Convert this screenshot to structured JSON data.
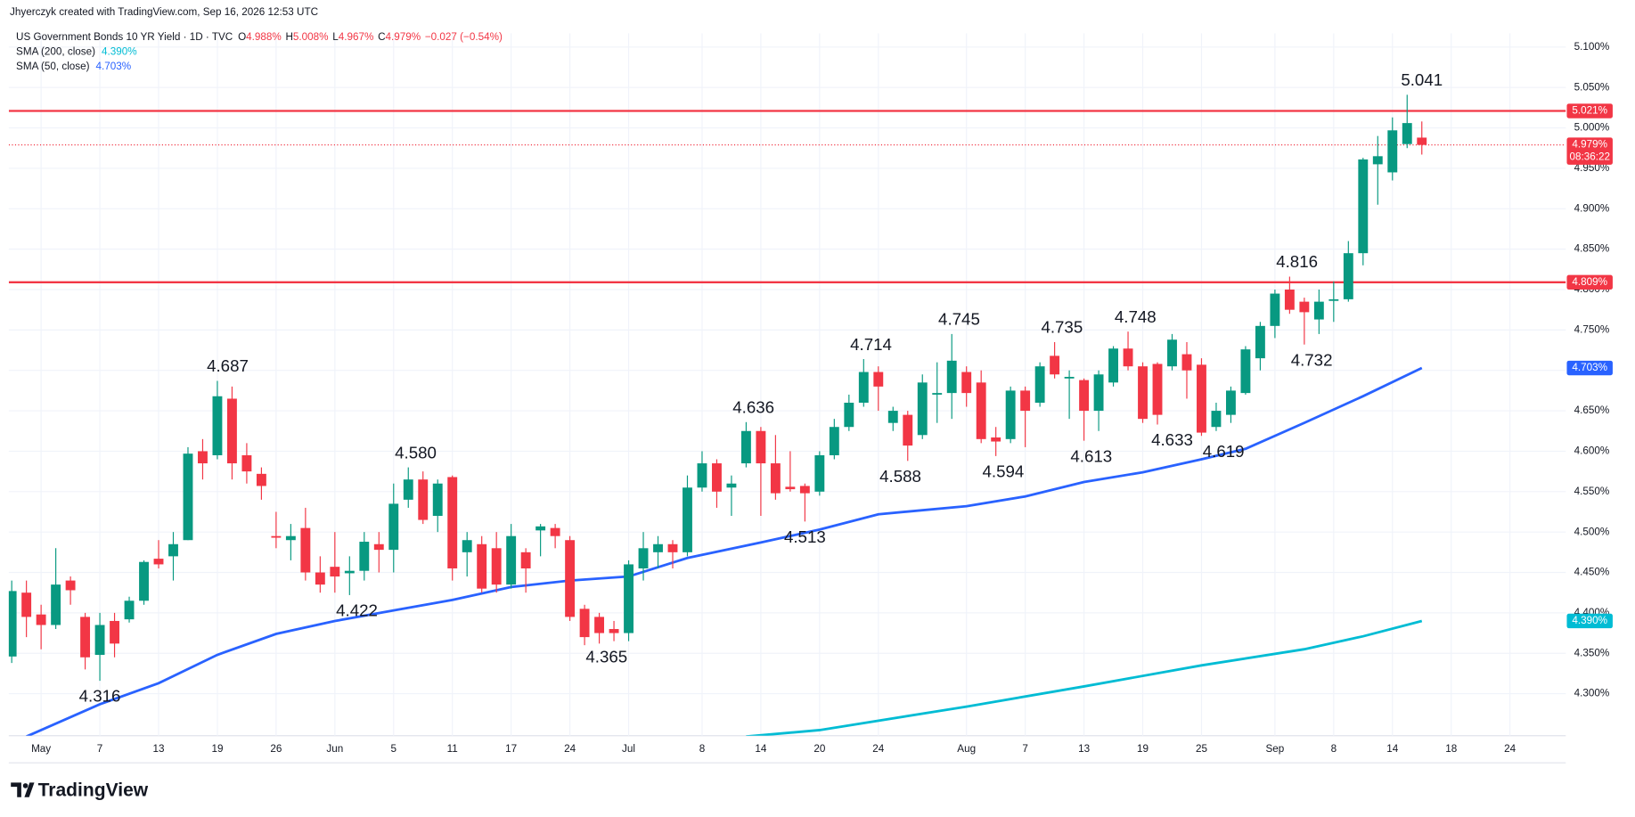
{
  "chart_data": {
    "type": "candlestick",
    "credit": "Jhyerczyk created with TradingView.com, Sep 16, 2026 12:53 UTC",
    "title": "US Government Bonds 10 YR Yield · 1D · TVC",
    "ohlc": [
      {
        "label": "O",
        "text": "4.988%"
      },
      {
        "label": "H",
        "text": "5.008%"
      },
      {
        "label": "L",
        "text": "4.967%"
      },
      {
        "label": "C",
        "text": "4.979%"
      }
    ],
    "change": "−0.027 (−0.54%)",
    "footer": "TradingView",
    "up_color": "#089981",
    "down_color": "#f23645",
    "open": [
      4.346,
      4.425,
      4.398,
      4.385,
      4.44,
      4.395,
      4.348,
      4.39,
      4.392,
      4.415,
      4.467,
      4.47,
      4.49,
      4.6,
      4.595,
      4.665,
      4.595,
      4.572,
      4.495,
      4.49,
      4.505,
      4.45,
      4.457,
      4.449,
      4.452,
      4.485,
      4.478,
      4.54,
      4.565,
      4.52,
      4.568,
      4.475,
      4.485,
      4.48,
      4.435,
      4.475,
      4.502,
      4.505,
      4.49,
      4.405,
      4.395,
      4.38,
      4.375,
      4.455,
      4.475,
      4.485,
      4.475,
      4.555,
      4.585,
      4.555,
      4.585,
      4.625,
      4.585,
      4.556,
      4.557,
      4.55,
      4.595,
      4.63,
      4.66,
      4.698,
      4.635,
      4.645,
      4.62,
      4.67,
      4.672,
      4.698,
      4.685,
      4.617,
      4.615,
      4.675,
      4.66,
      4.718,
      4.69,
      4.688,
      4.65,
      4.685,
      4.727,
      4.705,
      4.708,
      4.705,
      4.72,
      4.707,
      4.63,
      4.645,
      4.672,
      4.715,
      4.755,
      4.8,
      4.785,
      4.763,
      4.786,
      4.788,
      4.845,
      4.955,
      4.945,
      4.98,
      4.988
    ],
    "high": [
      4.44,
      4.44,
      4.41,
      4.48,
      4.445,
      4.4,
      4.4,
      4.4,
      4.42,
      4.465,
      4.49,
      4.5,
      4.605,
      4.615,
      4.687,
      4.68,
      4.61,
      4.58,
      4.525,
      4.51,
      4.53,
      4.47,
      4.5,
      4.47,
      4.5,
      4.5,
      4.56,
      4.58,
      4.575,
      4.565,
      4.57,
      4.5,
      4.495,
      4.5,
      4.51,
      4.48,
      4.51,
      4.51,
      4.495,
      4.41,
      4.4,
      4.39,
      4.465,
      4.5,
      4.495,
      4.49,
      4.57,
      4.6,
      4.59,
      4.57,
      4.636,
      4.63,
      4.62,
      4.6,
      4.56,
      4.6,
      4.64,
      4.67,
      4.714,
      4.705,
      4.655,
      4.65,
      4.695,
      4.71,
      4.745,
      4.705,
      4.7,
      4.63,
      4.68,
      4.68,
      4.71,
      4.735,
      4.7,
      4.69,
      4.7,
      4.73,
      4.748,
      4.71,
      4.71,
      4.745,
      4.735,
      4.715,
      4.66,
      4.68,
      4.73,
      4.76,
      4.8,
      4.816,
      4.79,
      4.8,
      4.81,
      4.86,
      4.963,
      4.99,
      5.013,
      5.041,
      5.008
    ],
    "low": [
      4.338,
      4.37,
      4.355,
      4.38,
      4.41,
      4.33,
      4.316,
      4.345,
      4.388,
      4.41,
      4.455,
      4.44,
      4.49,
      4.565,
      4.59,
      4.565,
      4.56,
      4.54,
      4.48,
      4.465,
      4.44,
      4.425,
      4.425,
      4.422,
      4.44,
      4.45,
      4.45,
      4.53,
      4.51,
      4.5,
      4.44,
      4.445,
      4.425,
      4.425,
      4.43,
      4.425,
      4.47,
      4.48,
      4.39,
      4.36,
      4.362,
      4.365,
      4.365,
      4.44,
      4.455,
      4.455,
      4.47,
      4.55,
      4.53,
      4.52,
      4.58,
      4.52,
      4.54,
      4.55,
      4.513,
      4.545,
      4.59,
      4.625,
      4.655,
      4.65,
      4.625,
      4.588,
      4.615,
      4.635,
      4.64,
      4.655,
      4.61,
      4.594,
      4.61,
      4.605,
      4.655,
      4.69,
      4.64,
      4.613,
      4.625,
      4.68,
      4.7,
      4.635,
      4.633,
      4.7,
      4.665,
      4.619,
      4.625,
      4.635,
      4.67,
      4.7,
      4.74,
      4.77,
      4.732,
      4.745,
      4.76,
      4.785,
      4.83,
      4.905,
      4.935,
      4.975,
      4.967
    ],
    "close": [
      4.427,
      4.395,
      4.385,
      4.435,
      4.428,
      4.345,
      4.385,
      4.362,
      4.415,
      4.463,
      4.46,
      4.485,
      4.597,
      4.585,
      4.668,
      4.585,
      4.575,
      4.557,
      4.493,
      4.495,
      4.45,
      4.435,
      4.445,
      4.452,
      4.488,
      4.478,
      4.535,
      4.565,
      4.515,
      4.56,
      4.455,
      4.49,
      4.43,
      4.435,
      4.495,
      4.455,
      4.507,
      4.495,
      4.395,
      4.37,
      4.375,
      4.375,
      4.46,
      4.48,
      4.485,
      4.475,
      4.555,
      4.585,
      4.55,
      4.56,
      4.625,
      4.585,
      4.548,
      4.553,
      4.548,
      4.595,
      4.63,
      4.66,
      4.698,
      4.68,
      4.65,
      4.607,
      4.685,
      4.672,
      4.712,
      4.672,
      4.615,
      4.612,
      4.675,
      4.65,
      4.705,
      4.695,
      4.692,
      4.65,
      4.695,
      4.727,
      4.705,
      4.64,
      4.645,
      4.738,
      4.7,
      4.623,
      4.65,
      4.675,
      4.726,
      4.755,
      4.795,
      4.775,
      4.772,
      4.785,
      4.788,
      4.845,
      4.961,
      4.965,
      4.997,
      5.006,
      4.979
    ],
    "xlim": [
      -0.2,
      105.8
    ],
    "xticks": [
      {
        "value": 2,
        "label": "May"
      },
      {
        "value": 6,
        "label": "7"
      },
      {
        "value": 10,
        "label": "13"
      },
      {
        "value": 14,
        "label": "19"
      },
      {
        "value": 18,
        "label": "26"
      },
      {
        "value": 22,
        "label": "Jun"
      },
      {
        "value": 26,
        "label": "5"
      },
      {
        "value": 30,
        "label": "11"
      },
      {
        "value": 34,
        "label": "17"
      },
      {
        "value": 38,
        "label": "24"
      },
      {
        "value": 42,
        "label": "Jul"
      },
      {
        "value": 47,
        "label": "8"
      },
      {
        "value": 51,
        "label": "14"
      },
      {
        "value": 55,
        "label": "20"
      },
      {
        "value": 59,
        "label": "24"
      },
      {
        "value": 65,
        "label": "Aug"
      },
      {
        "value": 69,
        "label": "7"
      },
      {
        "value": 73,
        "label": "13"
      },
      {
        "value": 77,
        "label": "19"
      },
      {
        "value": 81,
        "label": "25"
      },
      {
        "value": 86,
        "label": "Sep"
      },
      {
        "value": 90,
        "label": "8"
      },
      {
        "value": 94,
        "label": "14"
      },
      {
        "value": 98,
        "label": "18"
      },
      {
        "value": 102,
        "label": "24"
      }
    ],
    "ylim": [
      4.248,
      5.117
    ],
    "yticks": [
      {
        "value": 4.3,
        "label": "4.300%"
      },
      {
        "value": 4.35,
        "label": "4.350%"
      },
      {
        "value": 4.4,
        "label": "4.400%"
      },
      {
        "value": 4.45,
        "label": "4.450%"
      },
      {
        "value": 4.5,
        "label": "4.500%"
      },
      {
        "value": 4.55,
        "label": "4.550%"
      },
      {
        "value": 4.6,
        "label": "4.600%"
      },
      {
        "value": 4.65,
        "label": "4.650%"
      },
      {
        "value": 4.7,
        "label": "4.700%"
      },
      {
        "value": 4.75,
        "label": "4.750%"
      },
      {
        "value": 4.8,
        "label": "4.800%"
      },
      {
        "value": 4.85,
        "label": "4.850%"
      },
      {
        "value": 4.9,
        "label": "4.900%"
      },
      {
        "value": 4.95,
        "label": "4.950%"
      },
      {
        "value": 5.0,
        "label": "5.000%"
      },
      {
        "value": 5.05,
        "label": "5.050%"
      },
      {
        "value": 5.1,
        "label": "5.100%"
      }
    ],
    "grid": true,
    "series": [
      {
        "name": "SMA (200, close)",
        "legend_value": "4.390%",
        "color": "#00bcd4",
        "x": [
          50,
          55,
          65,
          73,
          81,
          88,
          92,
          96
        ],
        "values": [
          4.247,
          4.255,
          4.284,
          4.309,
          4.335,
          4.355,
          4.371,
          4.39
        ]
      },
      {
        "name": "SMA (50, close)",
        "legend_value": "4.703%",
        "color": "#2962ff",
        "x": [
          1,
          6,
          10,
          14,
          18,
          22,
          26,
          30,
          34,
          38,
          42,
          46,
          51,
          55,
          59,
          65,
          69,
          73,
          77,
          81,
          84,
          88,
          92,
          96
        ],
        "values": [
          4.247,
          4.287,
          4.313,
          4.348,
          4.374,
          4.39,
          4.403,
          4.416,
          4.432,
          4.44,
          4.445,
          4.468,
          4.487,
          4.503,
          4.522,
          4.532,
          4.544,
          4.562,
          4.574,
          4.59,
          4.603,
          4.635,
          4.668,
          4.703
        ]
      }
    ],
    "levels": [
      {
        "value": 5.021,
        "label": "5.021%",
        "color": "#f23645"
      },
      {
        "value": 4.809,
        "label": "4.809%",
        "color": "#f23645"
      }
    ],
    "last_price": {
      "value": 4.979,
      "label": "4.979%",
      "countdown": "08:36:22"
    },
    "annotations": [
      {
        "text": "4.316",
        "x": 6,
        "value": 4.316,
        "position": "below"
      },
      {
        "text": "4.687",
        "x": 14.7,
        "value": 4.687,
        "position": "above"
      },
      {
        "text": "4.422",
        "x": 23.5,
        "value": 4.422,
        "position": "below"
      },
      {
        "text": "4.580",
        "x": 27.5,
        "value": 4.58,
        "position": "above"
      },
      {
        "text": "4.365",
        "x": 40.5,
        "value": 4.365,
        "position": "below"
      },
      {
        "text": "4.636",
        "x": 50.5,
        "value": 4.636,
        "position": "above"
      },
      {
        "text": "4.513",
        "x": 54,
        "value": 4.513,
        "position": "below"
      },
      {
        "text": "4.714",
        "x": 58.5,
        "value": 4.714,
        "position": "above"
      },
      {
        "text": "4.588",
        "x": 60.5,
        "value": 4.588,
        "position": "below"
      },
      {
        "text": "4.745",
        "x": 64.5,
        "value": 4.745,
        "position": "above"
      },
      {
        "text": "4.594",
        "x": 67.5,
        "value": 4.594,
        "position": "below"
      },
      {
        "text": "4.735",
        "x": 71.5,
        "value": 4.735,
        "position": "above"
      },
      {
        "text": "4.613",
        "x": 73.5,
        "value": 4.613,
        "position": "below"
      },
      {
        "text": "4.748",
        "x": 76.5,
        "value": 4.748,
        "position": "above"
      },
      {
        "text": "4.633",
        "x": 79,
        "value": 4.633,
        "position": "below"
      },
      {
        "text": "4.619",
        "x": 82.5,
        "value": 4.619,
        "position": "below"
      },
      {
        "text": "4.816",
        "x": 87.5,
        "value": 4.816,
        "position": "above"
      },
      {
        "text": "4.732",
        "x": 88.5,
        "value": 4.732,
        "position": "below"
      },
      {
        "text": "5.041",
        "x": 96,
        "value": 5.041,
        "position": "above"
      }
    ]
  }
}
